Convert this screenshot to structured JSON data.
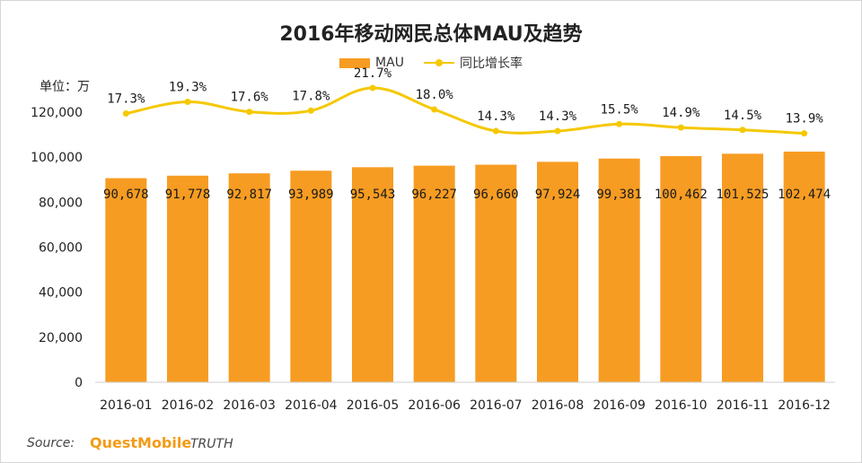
{
  "chart_data": {
    "type": "bar",
    "title": "2016年移动网民总体MAU及趋势",
    "unit_label": "单位：万",
    "categories": [
      "2016-01",
      "2016-02",
      "2016-03",
      "2016-04",
      "2016-05",
      "2016-06",
      "2016-07",
      "2016-08",
      "2016-09",
      "2016-10",
      "2016-11",
      "2016-12"
    ],
    "series": [
      {
        "name": "MAU",
        "type": "bar",
        "color": "#f79c22",
        "values": [
          90678,
          91778,
          92817,
          93989,
          95543,
          96227,
          96660,
          97924,
          99381,
          100462,
          101525,
          102474
        ],
        "labels": [
          "90,678",
          "91,778",
          "92,817",
          "93,989",
          "95,543",
          "96,227",
          "96,660",
          "97,924",
          "99,381",
          "100,462",
          "101,525",
          "102,474"
        ]
      },
      {
        "name": "同比增长率",
        "type": "line",
        "color": "#f5c800",
        "values": [
          17.3,
          19.3,
          17.6,
          17.8,
          21.7,
          18.0,
          14.3,
          14.3,
          15.5,
          14.9,
          14.5,
          13.9
        ],
        "labels": [
          "17.3%",
          "19.3%",
          "17.6%",
          "17.8%",
          "21.7%",
          "18.0%",
          "14.3%",
          "14.3%",
          "15.5%",
          "14.9%",
          "14.5%",
          "13.9%"
        ]
      }
    ],
    "ylim": [
      0,
      120000
    ],
    "yticks": [
      0,
      20000,
      40000,
      60000,
      80000,
      100000,
      120000
    ],
    "ytick_labels": [
      "0",
      "20,000",
      "40,000",
      "60,000",
      "80,000",
      "100,000",
      "120,000"
    ],
    "grid": false,
    "legend_position": "top-center"
  },
  "footer": {
    "source_label": "Source:",
    "brand": "QuestMobile",
    "brand_suffix": "TRUTH"
  }
}
